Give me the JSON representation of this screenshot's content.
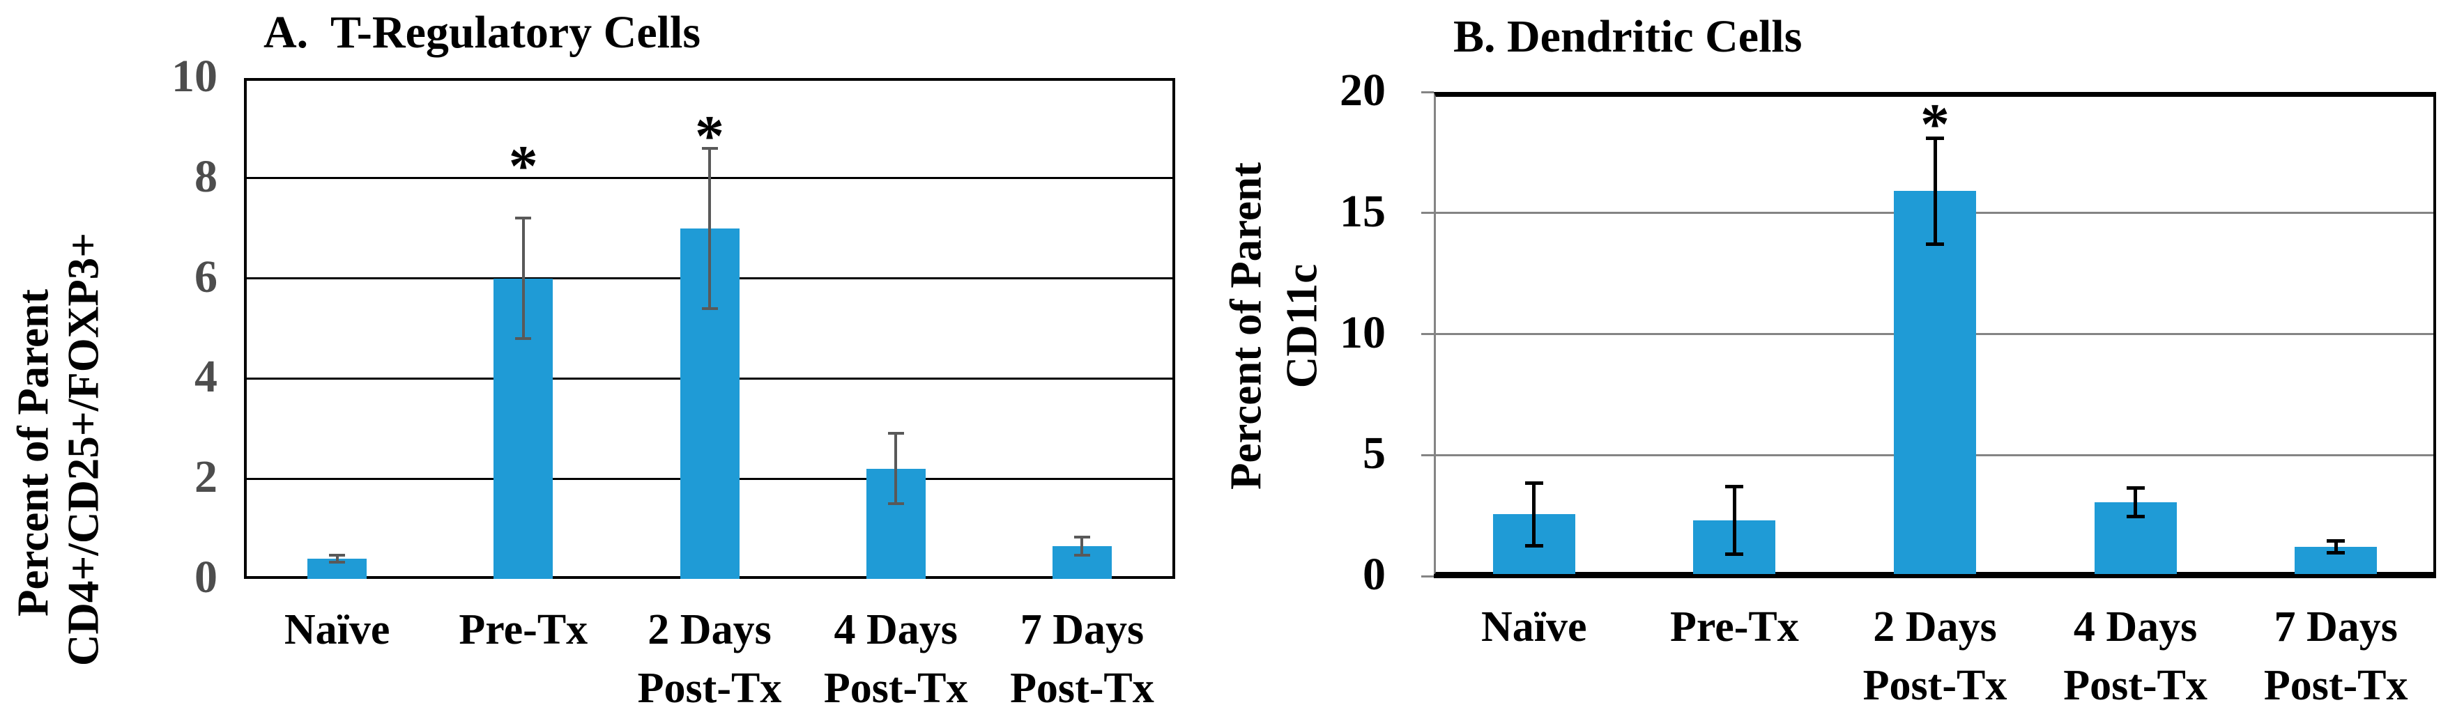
{
  "figure": {
    "background": "#ffffff",
    "bar_color": "#1F9BD6"
  },
  "chart_data": [
    {
      "type": "bar",
      "panel": "A",
      "title": "A.  T-Regulatory Cells",
      "ylabel_line1": "Percent of Parent",
      "ylabel_line2": "CD4+/CD25+/FOXP3+",
      "ylabel": "Percent of Parent CD4+/CD25+/FOXP3+",
      "xlabel": "",
      "ylim": [
        0,
        10
      ],
      "yticks": [
        0,
        2,
        4,
        6,
        8,
        10
      ],
      "grid": "on",
      "legend": "none",
      "categories": [
        "Naïve",
        "Pre-Tx",
        "2 Days Post-Tx",
        "4 Days Post-Tx",
        "7 Days Post-Tx"
      ],
      "category_lines": [
        [
          "Naïve"
        ],
        [
          "Pre-Tx"
        ],
        [
          "2 Days",
          "Post-Tx"
        ],
        [
          "4 Days",
          "Post-Tx"
        ],
        [
          "7 Days",
          "Post-Tx"
        ]
      ],
      "values": [
        0.4,
        6.0,
        7.0,
        2.2,
        0.65
      ],
      "errors": [
        0.07,
        1.2,
        1.6,
        0.7,
        0.18
      ],
      "annotations": [
        {
          "category": "Pre-Tx",
          "text": "*",
          "y": 8.45
        },
        {
          "category": "2 Days Post-Tx",
          "text": "*",
          "y": 9.05
        }
      ],
      "grid_color": "#000000",
      "error_bar_color": "#595959",
      "tick_label_color": "#4d4d4d"
    },
    {
      "type": "bar",
      "panel": "B",
      "title": "B. Dendritic Cells",
      "ylabel_line1": "Percent of Parent",
      "ylabel_line2": "CD11c",
      "ylabel": "Percent of Parent CD11c",
      "xlabel": "",
      "ylim": [
        0,
        20
      ],
      "yticks": [
        0,
        5,
        10,
        15,
        20
      ],
      "grid": "on",
      "legend": "none",
      "categories": [
        "Naïve",
        "Pre-Tx",
        "2 Days Post-Tx",
        "4 Days Post-Tx",
        "7 Days Post-Tx"
      ],
      "category_lines": [
        [
          "Naïve"
        ],
        [
          "Pre-Tx"
        ],
        [
          "2 Days",
          "Post-Tx"
        ],
        [
          "4 Days",
          "Post-Tx"
        ],
        [
          "7 Days",
          "Post-Tx"
        ]
      ],
      "values": [
        2.55,
        2.3,
        15.9,
        3.05,
        1.2
      ],
      "errors": [
        1.3,
        1.4,
        2.2,
        0.6,
        0.25
      ],
      "annotations": [
        {
          "category": "2 Days Post-Tx",
          "text": "*",
          "y": 19.1
        }
      ],
      "grid_color": "#848484",
      "error_bar_color": "#000000",
      "tick_label_color": "#000000"
    }
  ]
}
